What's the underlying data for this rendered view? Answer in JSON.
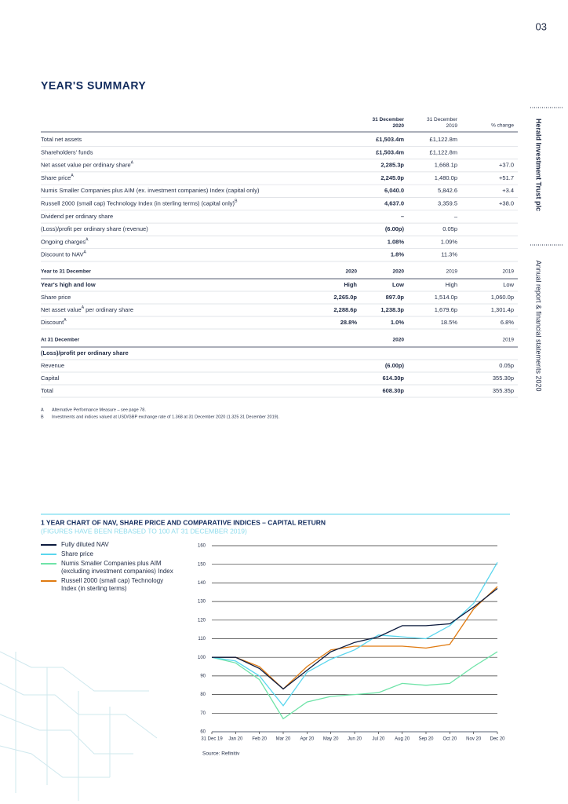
{
  "page_number": "03",
  "side": {
    "trust": "Herald Investment Trust plc",
    "report": "Annual report & financial statements 2020"
  },
  "title": "YEAR'S SUMMARY",
  "summary": {
    "columns": [
      "31 December 2020",
      "31 December 2019",
      "% change"
    ],
    "rows": [
      {
        "label": "Total net assets",
        "values": [
          "£1,503.4m",
          "£1,122.8m",
          null
        ]
      },
      {
        "label": "Shareholders' funds",
        "values": [
          "£1,503.4m",
          "£1,122.8m",
          null
        ]
      },
      {
        "label": "Net asset value per ordinary share",
        "note": "A",
        "values": [
          "2,285.3p",
          "1,668.1p",
          "+37.0"
        ]
      },
      {
        "label": "Share price",
        "note": "A",
        "values": [
          "2,245.0p",
          "1,480.0p",
          "+51.7"
        ]
      },
      {
        "label": "Numis Smaller Companies plus AIM (ex. investment companies) Index (capital only)",
        "values": [
          "6,040.0",
          "5,842.6",
          "+3.4"
        ]
      },
      {
        "label": "Russell 2000 (small cap) Technology Index (in sterling terms) (capital only)",
        "note": "B",
        "values": [
          "4,637.0",
          "3,359.5",
          "+38.0"
        ]
      },
      {
        "label": "Dividend per ordinary share",
        "values": [
          "–",
          "–",
          null
        ]
      },
      {
        "label": "(Loss)/profit per ordinary share (revenue)",
        "values": [
          "(6.00p)",
          "0.05p",
          null
        ]
      },
      {
        "label": "Ongoing charges",
        "note": "A",
        "values": [
          "1.08%",
          "1.09%",
          null
        ]
      },
      {
        "label": "Discount to NAV",
        "note": "A",
        "values": [
          "1.8%",
          "11.3%",
          null
        ]
      }
    ]
  },
  "year": {
    "heading": "Year to 31 December",
    "columns": [
      "2020",
      "2020",
      "2019",
      "2019"
    ],
    "rows": [
      {
        "label": "Year's high and low",
        "values": [
          "High",
          "Low",
          "High",
          "Low"
        ]
      },
      {
        "label": "Share price",
        "values": [
          "2,265.0p",
          "897.0p",
          "1,514.0p",
          "1,060.0p"
        ]
      },
      {
        "label": "Net asset value",
        "note": "A",
        "suffix": "per ordinary share",
        "values": [
          "2,288.6p",
          "1,238.3p",
          "1,679.6p",
          "1,301.4p"
        ]
      },
      {
        "label": "Discount",
        "note": "A",
        "values": [
          "28.8%",
          "1.0%",
          "18.5%",
          "6.8%"
        ]
      }
    ]
  },
  "at": {
    "heading": "At 31 December",
    "columns": [
      "2020",
      "2019"
    ],
    "subheading": "(Loss)/profit per ordinary share",
    "rows": [
      {
        "label": "Revenue",
        "values": [
          "(6.00p)",
          "0.05p"
        ]
      },
      {
        "label": "Capital",
        "values": [
          "614.30p",
          "355.30p"
        ]
      },
      {
        "label": "Total",
        "values": [
          "608.30p",
          "355.35p"
        ]
      }
    ]
  },
  "footnotes": [
    {
      "mark": "A",
      "text": "Alternative Performance Measure – see page 78."
    },
    {
      "mark": "B",
      "text": "Investments and indices valued at USD/GBP exchange rate of 1.368 at 31 December 2020 (1.325 31 December 2019)."
    }
  ],
  "chart_data": {
    "type": "line",
    "title": "1 YEAR CHART OF NAV, SHARE PRICE AND COMPARATIVE INDICES – CAPITAL RETURN",
    "subtitle": "(FIGURES HAVE BEEN REBASED TO 100 AT 31 DECEMBER 2019)",
    "categories": [
      "31 Dec 19",
      "Jan 20",
      "Feb 20",
      "Mar 20",
      "Apr 20",
      "May 20",
      "Jun 20",
      "Jul 20",
      "Aug 20",
      "Sep 20",
      "Oct 20",
      "Nov 20",
      "Dec 20"
    ],
    "series": [
      {
        "name": "Fully diluted NAV",
        "color": "#0d1b3e",
        "values": [
          100,
          100,
          94,
          83,
          93,
          103,
          108,
          111,
          117,
          117,
          118,
          127,
          137
        ]
      },
      {
        "name": "Share price",
        "color": "#5ad6ee",
        "values": [
          100,
          98,
          90,
          74,
          92,
          99,
          104,
          112,
          111,
          110,
          117,
          129,
          151
        ]
      },
      {
        "name": "Numis Smaller Companies plus AIM (excluding investment companies) Index",
        "color": "#6fe3a8",
        "values": [
          100,
          97,
          88,
          67,
          76,
          79,
          80,
          81,
          86,
          85,
          86,
          95,
          103
        ]
      },
      {
        "name": "Russell 2000 (small cap) Technology Index (in sterling terms)",
        "color": "#e07b12",
        "values": [
          100,
          100,
          95,
          83,
          95,
          104,
          106,
          106,
          106,
          105,
          107,
          126,
          138
        ]
      }
    ],
    "ylim": [
      60,
      160
    ],
    "yticks": [
      60,
      70,
      80,
      90,
      100,
      110,
      120,
      130,
      140,
      150,
      160
    ],
    "grid": true,
    "source": "Source: Refinitiv"
  }
}
